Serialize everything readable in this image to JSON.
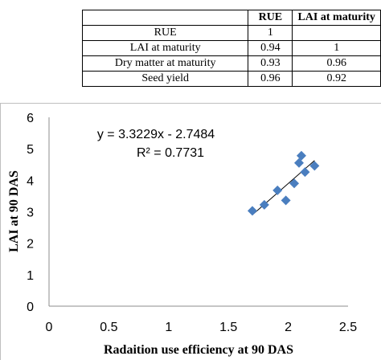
{
  "table": {
    "headers": [
      "",
      "RUE",
      "LAI at maturity"
    ],
    "rows": [
      [
        "RUE",
        "1",
        ""
      ],
      [
        "LAI at maturity",
        "0.94",
        "1"
      ],
      [
        "Dry matter at maturity",
        "0.93",
        "0.96"
      ],
      [
        "Seed yield",
        "0.96",
        "0.92"
      ]
    ]
  },
  "chart_data": {
    "type": "scatter",
    "title": "",
    "xlabel": "Radaition use efficiency at 90 DAS",
    "ylabel": "LAI at 90 DAS",
    "xlim": [
      0,
      2.5
    ],
    "ylim": [
      0,
      6
    ],
    "xticks": [
      "0",
      "0.5",
      "1",
      "1.5",
      "2",
      "2.5"
    ],
    "yticks": [
      "0",
      "1",
      "2",
      "3",
      "4",
      "5",
      "6"
    ],
    "points": [
      {
        "x": 1.7,
        "y": 3.03
      },
      {
        "x": 1.8,
        "y": 3.22
      },
      {
        "x": 1.91,
        "y": 3.68
      },
      {
        "x": 1.98,
        "y": 3.36
      },
      {
        "x": 2.05,
        "y": 3.9
      },
      {
        "x": 2.09,
        "y": 4.55
      },
      {
        "x": 2.11,
        "y": 4.78
      },
      {
        "x": 2.14,
        "y": 4.26
      },
      {
        "x": 2.22,
        "y": 4.46
      }
    ],
    "trendline": {
      "slope": 3.3229,
      "intercept": -2.7484,
      "x_range": [
        1.7,
        2.22
      ]
    },
    "equation_text": "y = 3.3229x - 2.7484",
    "r2_text": "R² = 0.7731",
    "grid": false,
    "marker_color": "#4a7ebf",
    "line_color": "#000000"
  }
}
